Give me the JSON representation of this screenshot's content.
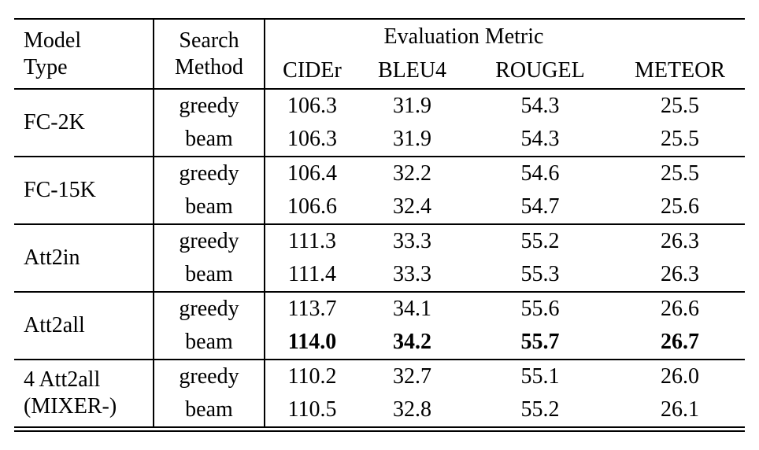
{
  "page": {
    "background": "#ffffff",
    "text_color": "#000000"
  },
  "table": {
    "header": {
      "model_col": "Model\nType",
      "search_col": "Search\nMethod",
      "metric_group": "Evaluation Metric",
      "metrics": [
        "CIDEr",
        "BLEU4",
        "ROUGEL",
        "METEOR"
      ]
    },
    "groups": [
      {
        "model": "FC-2K",
        "rows": [
          {
            "method": "greedy",
            "values": [
              "106.3",
              "31.9",
              "54.3",
              "25.5"
            ],
            "bold": false
          },
          {
            "method": "beam",
            "values": [
              "106.3",
              "31.9",
              "54.3",
              "25.5"
            ],
            "bold": false
          }
        ]
      },
      {
        "model": "FC-15K",
        "rows": [
          {
            "method": "greedy",
            "values": [
              "106.4",
              "32.2",
              "54.6",
              "25.5"
            ],
            "bold": false
          },
          {
            "method": "beam",
            "values": [
              "106.6",
              "32.4",
              "54.7",
              "25.6"
            ],
            "bold": false
          }
        ]
      },
      {
        "model": "Att2in",
        "rows": [
          {
            "method": "greedy",
            "values": [
              "111.3",
              "33.3",
              "55.2",
              "26.3"
            ],
            "bold": false
          },
          {
            "method": "beam",
            "values": [
              "111.4",
              "33.3",
              "55.3",
              "26.3"
            ],
            "bold": false
          }
        ]
      },
      {
        "model": "Att2all",
        "rows": [
          {
            "method": "greedy",
            "values": [
              "113.7",
              "34.1",
              "55.6",
              "26.6"
            ],
            "bold": false
          },
          {
            "method": "beam",
            "values": [
              "114.0",
              "34.2",
              "55.7",
              "26.7"
            ],
            "bold": true
          }
        ]
      },
      {
        "model": "4 Att2all\n(MIXER-)",
        "rows": [
          {
            "method": "greedy",
            "values": [
              "110.2",
              "32.7",
              "55.1",
              "26.0"
            ],
            "bold": false
          },
          {
            "method": "beam",
            "values": [
              "110.5",
              "32.8",
              "55.2",
              "26.1"
            ],
            "bold": false
          }
        ]
      }
    ]
  }
}
